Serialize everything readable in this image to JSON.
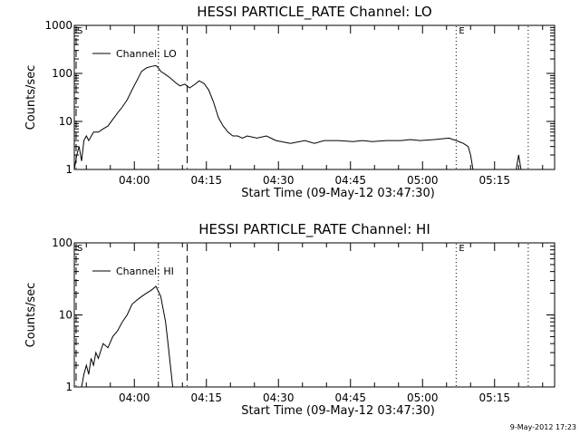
{
  "footer": "9-May-2012 17:23",
  "chart_data": [
    {
      "type": "line",
      "title": "HESSI PARTICLE_RATE Channel: LO",
      "xlabel": "Start Time (09-May-12 03:47:30)",
      "ylabel": "Counts/sec",
      "x_unit": "minutes after 03:47:30",
      "xlim": [
        0,
        100
      ],
      "ylim": [
        1,
        1000
      ],
      "yscale": "log",
      "xticks": [
        12.5,
        27.5,
        42.5,
        57.5,
        72.5,
        87.5
      ],
      "xticklabels": [
        "04:00",
        "04:15",
        "04:30",
        "04:45",
        "05:00",
        "05:15"
      ],
      "yticks": [
        1,
        10,
        100,
        1000
      ],
      "yticklabels": [
        "1",
        "10",
        "100",
        "1000"
      ],
      "legend": {
        "label": "Channel: LO",
        "position": "top-left"
      },
      "marks": [
        {
          "label": "S",
          "x": 0
        },
        {
          "label": "E",
          "x": 79.5
        }
      ],
      "vlines": [
        {
          "x": 0,
          "style": "dashed"
        },
        {
          "x": 17.5,
          "style": "dotted"
        },
        {
          "x": 23.5,
          "style": "dashed"
        },
        {
          "x": 79.5,
          "style": "dotted"
        },
        {
          "x": 94.5,
          "style": "dotted"
        }
      ],
      "series": [
        {
          "x": [
            0,
            0.5,
            1,
            1.5,
            2,
            2.5,
            3,
            4,
            5,
            6,
            7,
            8,
            9,
            10,
            11,
            12,
            13,
            14,
            15,
            16,
            17,
            17.5,
            18,
            19,
            20,
            21,
            22,
            23,
            24,
            25,
            26,
            27,
            28,
            29,
            30,
            31,
            32,
            33,
            34,
            35,
            36,
            38,
            40,
            42,
            45,
            48,
            50,
            52,
            55,
            58,
            60,
            62,
            65,
            68,
            70,
            72,
            75,
            78,
            79.5,
            81,
            82,
            82.5,
            83,
            84,
            85,
            86,
            87,
            88,
            89,
            90,
            91,
            92,
            92.5,
            93
          ],
          "y": [
            1,
            2,
            3,
            1.5,
            4,
            5,
            4,
            6,
            6,
            7,
            8,
            11,
            15,
            20,
            28,
            45,
            70,
            110,
            130,
            140,
            145,
            130,
            110,
            95,
            80,
            65,
            55,
            60,
            50,
            58,
            70,
            62,
            45,
            25,
            12,
            8,
            6,
            5,
            5,
            4.5,
            5,
            4.5,
            5,
            4,
            3.5,
            4,
            3.5,
            4,
            4,
            3.8,
            4,
            3.8,
            4,
            4,
            4.2,
            4,
            4.2,
            4.5,
            4,
            3.5,
            3,
            2,
            1,
            1,
            1,
            1,
            1,
            1,
            1,
            1,
            1,
            1,
            2,
            1
          ]
        }
      ]
    },
    {
      "type": "line",
      "title": "HESSI PARTICLE_RATE Channel: HI",
      "xlabel": "Start Time (09-May-12 03:47:30)",
      "ylabel": "Counts/sec",
      "x_unit": "minutes after 03:47:30",
      "xlim": [
        0,
        100
      ],
      "ylim": [
        1,
        100
      ],
      "yscale": "log",
      "xticks": [
        12.5,
        27.5,
        42.5,
        57.5,
        72.5,
        87.5
      ],
      "xticklabels": [
        "04:00",
        "04:15",
        "04:30",
        "04:45",
        "05:00",
        "05:15"
      ],
      "yticks": [
        1,
        10,
        100
      ],
      "yticklabels": [
        "1",
        "10",
        "100"
      ],
      "legend": {
        "label": "Channel: HI",
        "position": "top-left"
      },
      "marks": [
        {
          "label": "S",
          "x": 0
        },
        {
          "label": "E",
          "x": 79.5
        }
      ],
      "vlines": [
        {
          "x": 0,
          "style": "dashed"
        },
        {
          "x": 17.5,
          "style": "dotted"
        },
        {
          "x": 23.5,
          "style": "dashed"
        },
        {
          "x": 79.5,
          "style": "dotted"
        },
        {
          "x": 94.5,
          "style": "dotted"
        }
      ],
      "series": [
        {
          "x": [
            1.5,
            2,
            2.5,
            3,
            3.5,
            4,
            4.5,
            5,
            6,
            7,
            8,
            9,
            10,
            11,
            12,
            13,
            14,
            15,
            16,
            17,
            18,
            19,
            19.5,
            20,
            20.5
          ],
          "y": [
            1,
            1.5,
            2,
            1.5,
            2.5,
            2,
            3,
            2.5,
            4,
            3.5,
            5,
            6,
            8,
            10,
            14,
            16,
            18,
            20,
            22,
            25,
            18,
            8,
            4,
            2,
            1
          ]
        }
      ]
    }
  ]
}
